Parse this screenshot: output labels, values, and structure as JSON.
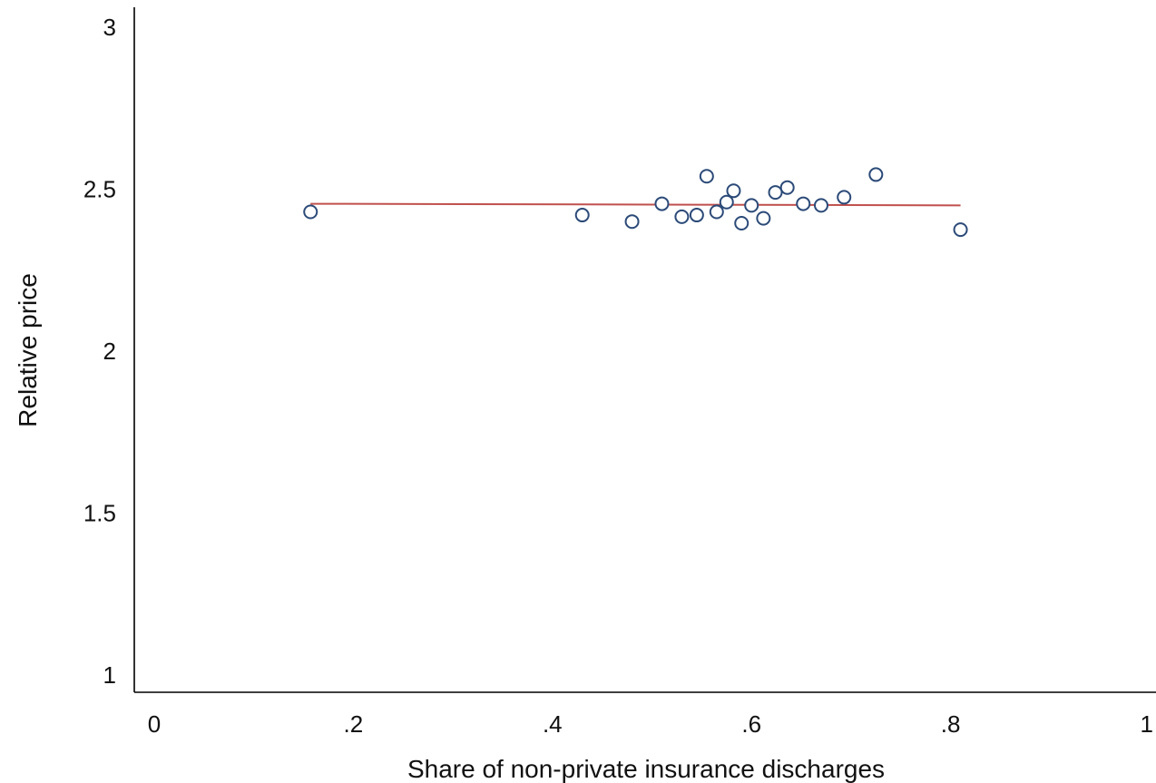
{
  "chart_data": {
    "type": "scatter",
    "title": "",
    "xlabel": "Share of non-private insurance discharges",
    "ylabel": "Relative price",
    "xlim": [
      0,
      1
    ],
    "ylim": [
      1,
      3
    ],
    "xticks": [
      {
        "value": 0,
        "label": "0"
      },
      {
        "value": 0.2,
        "label": ".2"
      },
      {
        "value": 0.4,
        "label": ".4"
      },
      {
        "value": 0.6,
        "label": ".6"
      },
      {
        "value": 0.8,
        "label": ".8"
      },
      {
        "value": 1,
        "label": "1"
      }
    ],
    "yticks": [
      {
        "value": 1,
        "label": "1"
      },
      {
        "value": 1.5,
        "label": "1.5"
      },
      {
        "value": 2,
        "label": "2"
      },
      {
        "value": 2.5,
        "label": "2.5"
      },
      {
        "value": 3,
        "label": "3"
      }
    ],
    "grid": false,
    "legend": "none",
    "points": [
      {
        "x": 0.157,
        "y": 2.43
      },
      {
        "x": 0.43,
        "y": 2.42
      },
      {
        "x": 0.48,
        "y": 2.4
      },
      {
        "x": 0.51,
        "y": 2.455
      },
      {
        "x": 0.53,
        "y": 2.415
      },
      {
        "x": 0.545,
        "y": 2.42
      },
      {
        "x": 0.555,
        "y": 2.54
      },
      {
        "x": 0.565,
        "y": 2.43
      },
      {
        "x": 0.575,
        "y": 2.46
      },
      {
        "x": 0.582,
        "y": 2.495
      },
      {
        "x": 0.59,
        "y": 2.395
      },
      {
        "x": 0.6,
        "y": 2.45
      },
      {
        "x": 0.612,
        "y": 2.41
      },
      {
        "x": 0.624,
        "y": 2.49
      },
      {
        "x": 0.636,
        "y": 2.505
      },
      {
        "x": 0.652,
        "y": 2.455
      },
      {
        "x": 0.67,
        "y": 2.45
      },
      {
        "x": 0.693,
        "y": 2.475
      },
      {
        "x": 0.725,
        "y": 2.545
      },
      {
        "x": 0.81,
        "y": 2.375
      }
    ],
    "fit_line": {
      "x": [
        0.157,
        0.81
      ],
      "y": [
        2.455,
        2.45
      ]
    },
    "colors": {
      "marker": "#2b4a78",
      "fit_line": "#c0504d",
      "axis": "#000000"
    }
  }
}
